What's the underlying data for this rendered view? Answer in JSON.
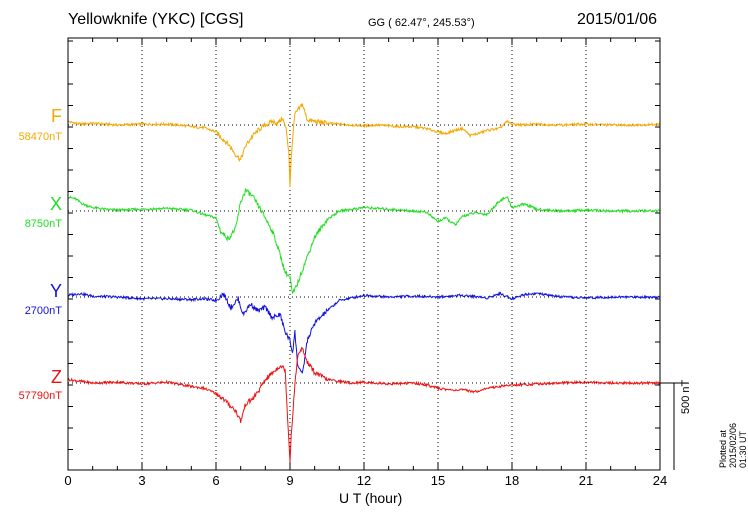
{
  "header": {
    "station": "Yellowknife (YKC)  [CGS]",
    "coords": "GG ( 62.47°, 245.53°)",
    "date": "2015/01/06"
  },
  "footer": {
    "plotted": "Plotted at 2015/02/06 01:30 UT",
    "scale_label": "500 nT"
  },
  "chart_data": {
    "type": "line",
    "title": "Yellowknife (YKC)  [CGS]",
    "xlabel": "U T (hour)",
    "xlim": [
      0,
      24
    ],
    "xticks": [
      "0",
      "3",
      "6",
      "9",
      "12",
      "15",
      "18",
      "21",
      "24"
    ],
    "grid": true,
    "y_scale_bar_nT": 500,
    "series": [
      {
        "name": "F",
        "baseline_label": "58470nT",
        "baseline_nT": 58470,
        "color": "#f5a800",
        "x": [
          0,
          0.5,
          1,
          2,
          3,
          4,
          4.5,
          5,
          5.5,
          6,
          6.2,
          6.5,
          6.8,
          7,
          7.2,
          7.5,
          7.8,
          8,
          8.3,
          8.5,
          8.7,
          8.85,
          8.95,
          9,
          9.05,
          9.1,
          9.2,
          9.35,
          9.5,
          9.7,
          10,
          10.5,
          11,
          11.5,
          12,
          12.5,
          13,
          13.5,
          14,
          14.5,
          15,
          15.3,
          15.7,
          16,
          16.3,
          16.6,
          17,
          17.5,
          17.8,
          18,
          18.5,
          19,
          20,
          21,
          22,
          23,
          24
        ],
        "offset_nT": [
          20,
          5,
          10,
          0,
          5,
          5,
          0,
          -10,
          -15,
          -40,
          -70,
          -110,
          -170,
          -200,
          -120,
          -60,
          -20,
          0,
          20,
          10,
          40,
          -30,
          -150,
          -350,
          -200,
          -80,
          60,
          90,
          120,
          30,
          20,
          10,
          5,
          0,
          -5,
          0,
          -5,
          -10,
          -10,
          -20,
          -40,
          -50,
          -30,
          -20,
          -60,
          -50,
          -30,
          -20,
          20,
          5,
          0,
          5,
          0,
          5,
          0,
          0,
          5
        ]
      },
      {
        "name": "X",
        "baseline_label": "8750nT",
        "baseline_nT": 8750,
        "color": "#22dd22",
        "x": [
          0,
          0.3,
          0.6,
          1,
          1.5,
          2,
          3,
          4,
          5,
          5.5,
          6,
          6.2,
          6.5,
          6.8,
          7,
          7.2,
          7.5,
          7.8,
          8,
          8.3,
          8.6,
          8.8,
          9,
          9.1,
          9.3,
          9.6,
          10,
          10.5,
          11,
          11.5,
          12,
          12.5,
          13,
          13.5,
          14,
          14.5,
          15,
          15.3,
          15.7,
          16,
          16.5,
          17,
          17.5,
          17.8,
          18,
          18.5,
          19,
          20,
          21,
          22,
          23,
          24
        ],
        "offset_nT": [
          80,
          70,
          40,
          20,
          10,
          5,
          10,
          15,
          5,
          -20,
          -40,
          -120,
          -160,
          -100,
          50,
          120,
          80,
          10,
          -40,
          -120,
          -250,
          -350,
          -380,
          -480,
          -420,
          -300,
          -150,
          -50,
          0,
          10,
          20,
          15,
          10,
          5,
          0,
          -5,
          -60,
          -40,
          -80,
          -30,
          -10,
          -20,
          60,
          80,
          20,
          40,
          10,
          0,
          5,
          0,
          0,
          0
        ]
      },
      {
        "name": "Y",
        "baseline_label": "2700nT",
        "baseline_nT": 2700,
        "color": "#1111dd",
        "x": [
          0,
          0.5,
          1,
          2,
          3,
          4,
          5,
          5.5,
          6,
          6.3,
          6.6,
          6.9,
          7.1,
          7.4,
          7.7,
          8,
          8.3,
          8.6,
          8.8,
          9,
          9.1,
          9.2,
          9.3,
          9.5,
          9.7,
          10,
          10.5,
          11,
          12,
          13,
          14,
          15,
          16,
          17,
          17.5,
          18,
          18.5,
          19,
          20,
          21,
          22,
          23,
          24
        ],
        "offset_nT": [
          10,
          20,
          5,
          0,
          -10,
          -10,
          -15,
          -10,
          -20,
          20,
          -60,
          -10,
          -100,
          -40,
          -80,
          -60,
          -120,
          -100,
          -200,
          -250,
          -320,
          -200,
          -380,
          -450,
          -250,
          -150,
          -80,
          -20,
          10,
          0,
          5,
          0,
          10,
          -5,
          20,
          -10,
          15,
          20,
          0,
          -5,
          0,
          0,
          0
        ]
      },
      {
        "name": "Z",
        "baseline_label": "57790nT",
        "baseline_nT": 57790,
        "color": "#ee1111",
        "x": [
          0,
          0.5,
          1,
          2,
          3,
          4,
          5,
          5.5,
          6,
          6.2,
          6.5,
          6.8,
          7,
          7.2,
          7.5,
          7.8,
          8,
          8.3,
          8.6,
          8.8,
          9,
          9.05,
          9.15,
          9.3,
          9.5,
          9.7,
          10,
          10.5,
          11,
          11.5,
          12,
          13,
          14,
          14.5,
          15,
          15.5,
          16,
          16.5,
          17,
          17.5,
          18,
          18.5,
          19,
          20,
          21,
          22,
          23,
          24
        ],
        "offset_nT": [
          20,
          10,
          0,
          5,
          -5,
          5,
          -20,
          -30,
          -60,
          -80,
          -120,
          -160,
          -220,
          -120,
          -90,
          -30,
          20,
          60,
          100,
          80,
          -450,
          -300,
          -100,
          150,
          200,
          120,
          60,
          20,
          10,
          0,
          5,
          -5,
          0,
          -10,
          -30,
          -40,
          -40,
          -50,
          -30,
          -20,
          -10,
          -10,
          -5,
          0,
          5,
          0,
          0,
          0
        ]
      }
    ]
  }
}
